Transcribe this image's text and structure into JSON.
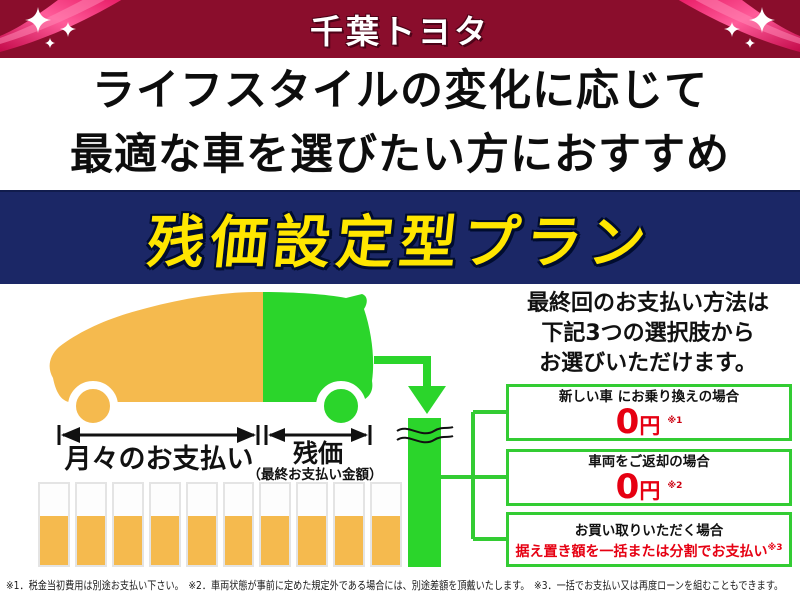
{
  "header": {
    "brand": "千葉トヨタ",
    "bg_color": "#8a0d2c",
    "ribbon_color": "#e5125e"
  },
  "headline": {
    "line1": "ライフスタイルの変化に応じて",
    "line2": "最適な車を選びたい方におすすめ"
  },
  "banner": {
    "title": "残価設定型プラン",
    "bg_color": "#1b2766",
    "text_color": "#ffe600"
  },
  "diagram": {
    "monthly_label": "月々のお支払い",
    "residual_label": "残価",
    "residual_sublabel": "（最終お支払い金額）",
    "installment_bar_count": 10,
    "monthly_color": "#f5ba4e",
    "residual_color": "#2bd52b"
  },
  "options_intro": {
    "line1": "最終回のお支払い方法は",
    "line2": "下記3つの選択肢から",
    "line3": "お選びいただけます。"
  },
  "options": [
    {
      "title": "新しい車 にお乗り換えの場合",
      "price": "0",
      "unit": "円",
      "note_ref": "※1"
    },
    {
      "title": "車両をご返却の場合",
      "price": "0",
      "unit": "円",
      "note_ref": "※2"
    },
    {
      "title": "お買い取りいただく場合",
      "detail": "据え置き額を一括または分割でお支払い",
      "note_ref": "※3"
    }
  ],
  "footnote": "※1．税金当初費用は別途お支払い下さい。　※2．車両状態が事前に定めた規定外である場合には、別途差額を頂戴いたします。　※3．一括でお支払い又は再度ローンを組むこともできます。",
  "accent_colors": {
    "price_red": "#e60012",
    "box_border_green": "#33cc33"
  }
}
